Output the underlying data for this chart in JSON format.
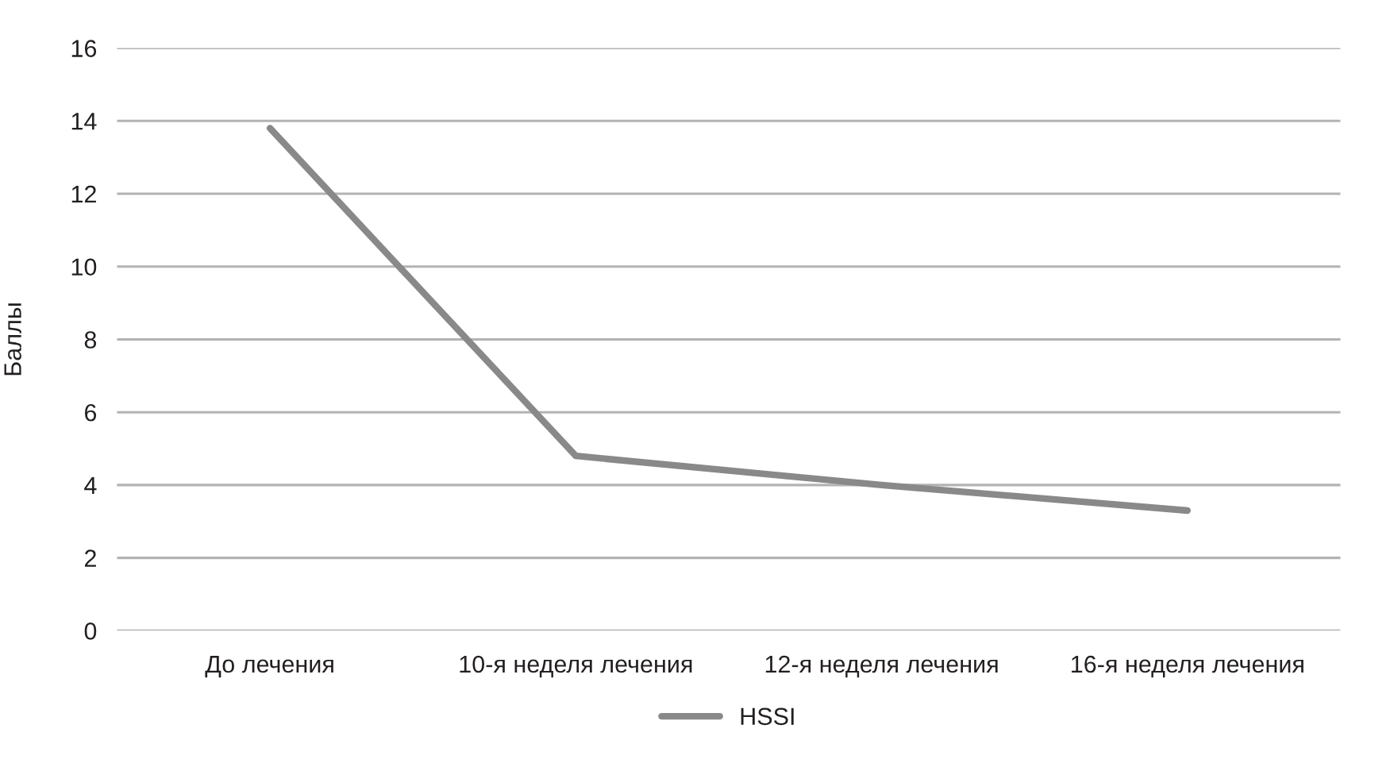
{
  "chart_data": {
    "type": "line",
    "categories": [
      "До лечения",
      "10-я неделя лечения",
      "12-я неделя лечения",
      "16-я неделя лечения"
    ],
    "series": [
      {
        "name": "HSSI",
        "color": "#898989",
        "values": [
          13.8,
          4.8,
          4.0,
          3.3
        ]
      }
    ],
    "ylabel": "Баллы",
    "ylim": [
      0,
      16
    ],
    "yticks": [
      0,
      2,
      4,
      6,
      8,
      10,
      12,
      14,
      16
    ],
    "grid": "y",
    "legend": "bottom",
    "marker": "none",
    "line_style": "solid"
  }
}
